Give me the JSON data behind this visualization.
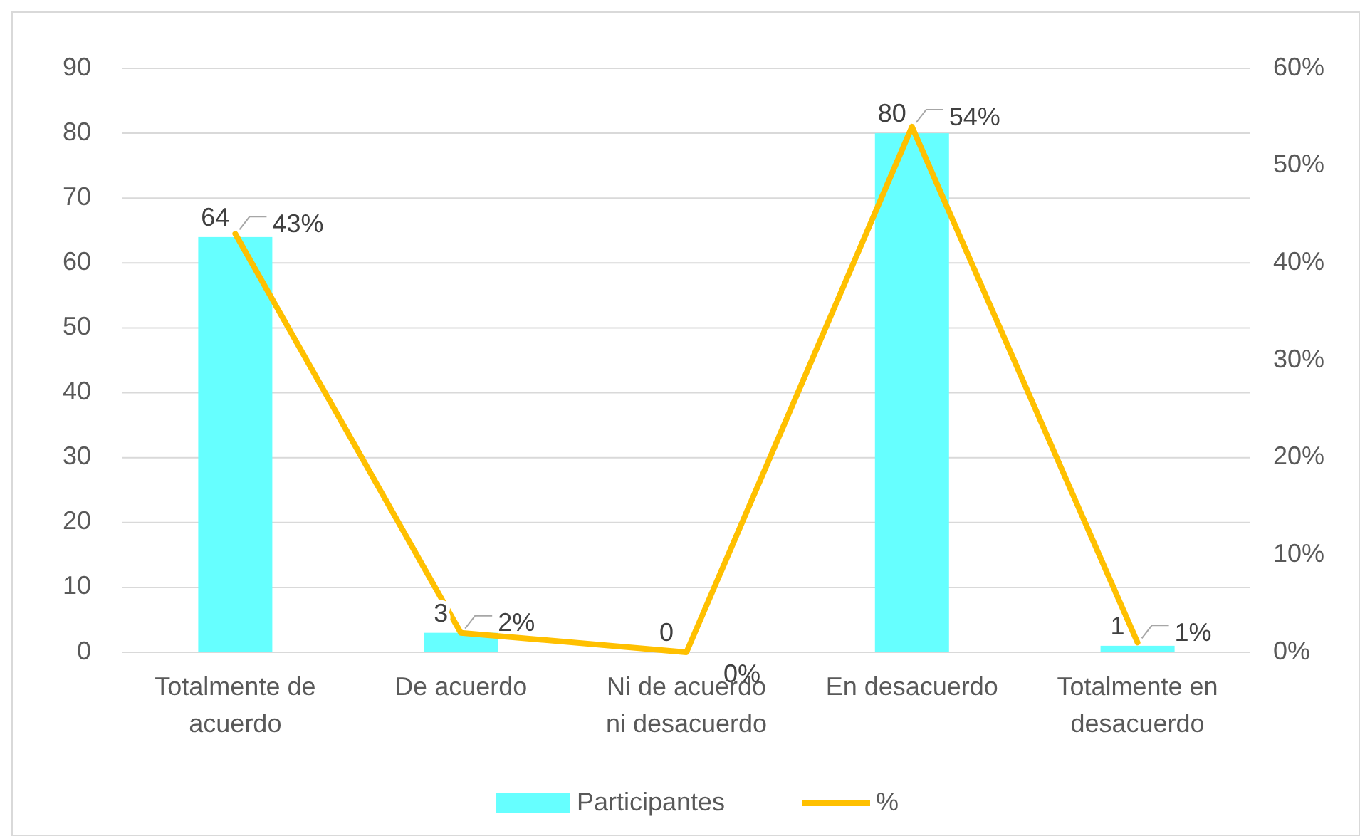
{
  "chart_data": {
    "type": "bar",
    "categories": [
      "Totalmente de acuerdo",
      "De acuerdo",
      "Ni de acuerdo ni desacuerdo",
      "En desacuerdo",
      "Totalmente en desacuerdo"
    ],
    "series": [
      {
        "name": "Participantes",
        "color": "#66ffff",
        "values": [
          64,
          3,
          0,
          80,
          1
        ]
      },
      {
        "name": "%",
        "type": "line",
        "axis": "y2",
        "color": "#ffc000",
        "values": [
          43,
          2,
          0,
          54,
          1
        ],
        "value_labels": [
          "43%",
          "2%",
          "0%",
          "54%",
          "1%"
        ]
      }
    ],
    "ylim": [
      0,
      90
    ],
    "yticks": [
      0,
      10,
      20,
      30,
      40,
      50,
      60,
      70,
      80,
      90
    ],
    "y2lim": [
      0,
      60
    ],
    "y2ticks": [
      {
        "value": 0,
        "label": "0%"
      },
      {
        "value": 10,
        "label": "10%"
      },
      {
        "value": 20,
        "label": "20%"
      },
      {
        "value": 30,
        "label": "30%"
      },
      {
        "value": 40,
        "label": "40%"
      },
      {
        "value": 50,
        "label": "50%"
      },
      {
        "value": 60,
        "label": "60%"
      }
    ],
    "grid": "y",
    "legend": "bottom",
    "data_labels": true
  }
}
